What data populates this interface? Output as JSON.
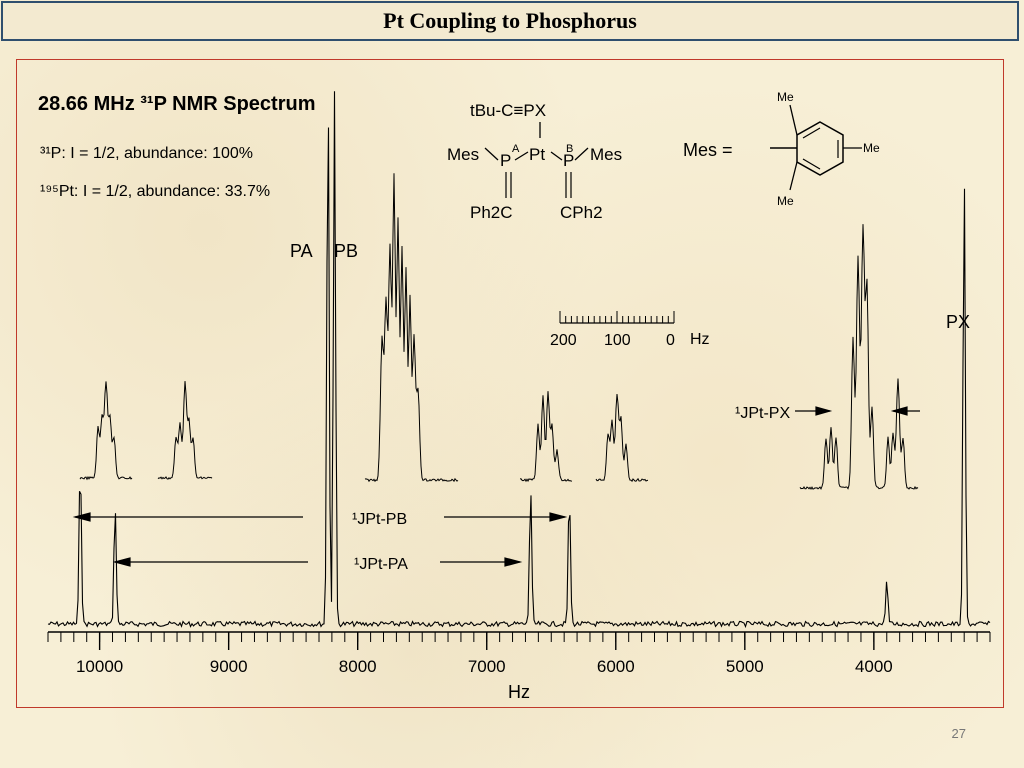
{
  "slide": {
    "title": "Pt Coupling to Phosphorus",
    "page_number": "27"
  },
  "chart_data": {
    "type": "line",
    "title": "28.66 MHz ³¹P NMR Spectrum",
    "notes": [
      "³¹P: I = 1/2, abundance: 100%",
      "¹⁹⁵Pt: I = 1/2, abundance: 33.7%"
    ],
    "xlabel": "Hz",
    "x_reversed": true,
    "xlim": [
      10400,
      3100
    ],
    "xticks": [
      10000,
      9000,
      8000,
      7000,
      6000,
      5000,
      4000
    ],
    "baseline_peaks": [
      {
        "x": 10150,
        "height": 0.3
      },
      {
        "x": 9880,
        "height": 0.22
      },
      {
        "x": 8230,
        "height": 1.0
      },
      {
        "x": 8180,
        "height": 0.98
      },
      {
        "x": 6660,
        "height": 0.25
      },
      {
        "x": 6360,
        "height": 0.24
      },
      {
        "x": 3900,
        "height": 0.08
      },
      {
        "x": 3300,
        "height": 0.83
      }
    ],
    "peak_labels": [
      "PA",
      "PB",
      "PX"
    ],
    "coupling_labels": [
      "¹JPt-PB",
      "¹JPt-PA",
      "¹JPt-PX"
    ],
    "scale_bar": {
      "labels": [
        "200",
        "100",
        "0"
      ],
      "unit": "Hz"
    },
    "inset_expansions": [
      "PB satellite (10150)",
      "PA satellite (9880)",
      "PA/PB main",
      "PA satellite (6660)",
      "PB satellite (6360)",
      "PX expansion"
    ]
  },
  "structure": {
    "top_label": "tBu-C≡PX",
    "left_group": "Mes",
    "right_group": "Mes",
    "metal": "Pt",
    "atom_a": "P",
    "atom_b": "P",
    "label_a": "A",
    "label_b": "B",
    "left_bottom": "Ph2C",
    "right_bottom": "CPh2",
    "mes_def": "Mes  =",
    "methyl": "Me"
  }
}
